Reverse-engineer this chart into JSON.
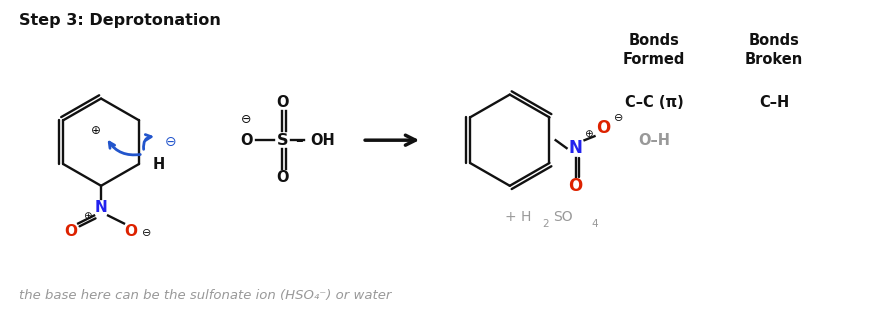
{
  "title": "Step 3: Deprotonation",
  "bg_color": "#ffffff",
  "footnote": "the base here can be the sulfonate ion (HSO₄⁻) or water",
  "bonds_formed_header": "Bonds\nFormed",
  "bonds_broken_header": "Bonds\nBroken",
  "bonds_formed_1": "C–C (π)",
  "bonds_formed_2": "O–H",
  "bonds_broken_1": "C–H",
  "blue_arrow_color": "#2255cc",
  "red_color": "#dd2200",
  "blue_color": "#2222ee",
  "gray_color": "#999999",
  "dark_color": "#111111",
  "lw": 1.7
}
